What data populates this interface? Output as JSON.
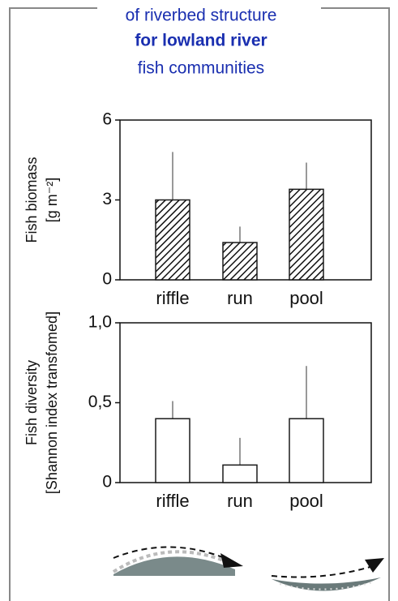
{
  "title": [
    "of riverbed structure",
    "for lowland river",
    "fish communities"
  ],
  "chart_data": [
    {
      "type": "bar",
      "categories": [
        "riffle",
        "run",
        "pool"
      ],
      "values": [
        3.0,
        1.4,
        3.4
      ],
      "errors": [
        1.8,
        0.6,
        1.0
      ],
      "ylim": [
        0,
        6
      ],
      "yticks": [
        0,
        3,
        6
      ],
      "ylabel": [
        "Fish biomass",
        "[g m⁻²]"
      ],
      "hatch": true,
      "color": "#1a1a1a"
    },
    {
      "type": "bar",
      "categories": [
        "riffle",
        "run",
        "pool"
      ],
      "values": [
        0.4,
        0.11,
        0.4
      ],
      "errors": [
        0.11,
        0.17,
        0.33
      ],
      "ylim": [
        0,
        1
      ],
      "yticks": [
        0,
        {
          "value": 0.5,
          "label": "0,5"
        },
        {
          "value": 1,
          "label": "1,0"
        }
      ],
      "ylabel": [
        "Fish diversity",
        "[Shannon index transfomed]"
      ],
      "hatch": false,
      "color": "#1a1a1a"
    }
  ]
}
